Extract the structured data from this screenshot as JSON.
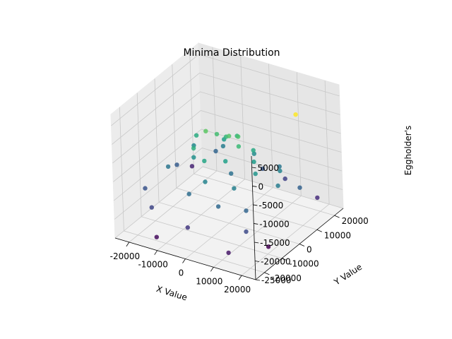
{
  "chart_data": {
    "type": "scatter3d",
    "title": "Minima Distribution",
    "xlabel": "X Value",
    "ylabel": "Y Value",
    "zlabel": "Eggholder's",
    "colormap": "viridis (by z value)",
    "xlim": [
      -25000,
      25000
    ],
    "ylim": [
      -25000,
      25000
    ],
    "zlim": [
      -25000,
      8000
    ],
    "grid": true,
    "x_ticks": [
      "-20000",
      "-10000",
      "0",
      "10000",
      "20000"
    ],
    "y_ticks": [
      "-20000",
      "-10000",
      "0",
      "10000",
      "20000"
    ],
    "z_ticks": [
      "-25000",
      "-20000",
      "-15000",
      "-10000",
      "-5000",
      "0",
      "5000"
    ],
    "points": [
      {
        "x": 22000,
        "y": 5000,
        "z": 7000
      },
      {
        "x": -6000,
        "y": -2000,
        "z": -1000
      },
      {
        "x": -4000,
        "y": 1000,
        "z": -2500
      },
      {
        "x": 1000,
        "y": 0,
        "z": -1500
      },
      {
        "x": 3000,
        "y": 2000,
        "z": -2000
      },
      {
        "x": -8000,
        "y": -6000,
        "z": -4500
      },
      {
        "x": -2000,
        "y": 3000,
        "z": -3500
      },
      {
        "x": 5000,
        "y": -1000,
        "z": -3000
      },
      {
        "x": -12000,
        "y": 2000,
        "z": -5000
      },
      {
        "x": 0,
        "y": 6000,
        "z": -4000
      },
      {
        "x": 7000,
        "y": 4000,
        "z": -5500
      },
      {
        "x": -3000,
        "y": -8000,
        "z": -6000
      },
      {
        "x": 2000,
        "y": -4000,
        "z": -6500
      },
      {
        "x": 9000,
        "y": 1000,
        "z": -7000
      },
      {
        "x": -6000,
        "y": 8000,
        "z": -7000
      },
      {
        "x": 12000,
        "y": -3000,
        "z": -8000
      },
      {
        "x": -10000,
        "y": -3000,
        "z": -8500
      },
      {
        "x": 4000,
        "y": 9000,
        "z": -9000
      },
      {
        "x": -15000,
        "y": 5000,
        "z": -9500
      },
      {
        "x": 15000,
        "y": 6000,
        "z": -10000
      },
      {
        "x": -1000,
        "y": -11000,
        "z": -10000
      },
      {
        "x": 8000,
        "y": -9000,
        "z": -10500
      },
      {
        "x": -9000,
        "y": 12000,
        "z": -11000
      },
      {
        "x": 18000,
        "y": 0,
        "z": -11000
      },
      {
        "x": -18000,
        "y": -5000,
        "z": -12000
      },
      {
        "x": 11000,
        "y": 12000,
        "z": -12000
      },
      {
        "x": 0,
        "y": 2000,
        "z": -12500
      },
      {
        "x": -5000,
        "y": -14000,
        "z": -13000
      },
      {
        "x": 6000,
        "y": -15000,
        "z": -13500
      },
      {
        "x": -13000,
        "y": 14000,
        "z": -14000
      },
      {
        "x": 14000,
        "y": -12000,
        "z": -14000
      },
      {
        "x": 20000,
        "y": 9000,
        "z": -14500
      },
      {
        "x": -20000,
        "y": 3000,
        "z": -15000
      },
      {
        "x": 3000,
        "y": 15000,
        "z": -15500
      },
      {
        "x": -22000,
        "y": -12000,
        "z": -16000
      },
      {
        "x": 17000,
        "y": -17000,
        "z": -17000
      },
      {
        "x": -16000,
        "y": -18000,
        "z": -17500
      },
      {
        "x": 9000,
        "y": 18000,
        "z": -18000
      },
      {
        "x": -2000,
        "y": -20000,
        "z": -19000
      },
      {
        "x": 21000,
        "y": 17000,
        "z": -20000
      },
      {
        "x": -23000,
        "y": 16000,
        "z": -21000
      },
      {
        "x": 13000,
        "y": -21000,
        "z": -22000
      },
      {
        "x": -12000,
        "y": -22000,
        "z": -23000
      },
      {
        "x": 19000,
        "y": -8000,
        "z": -24000
      }
    ]
  }
}
